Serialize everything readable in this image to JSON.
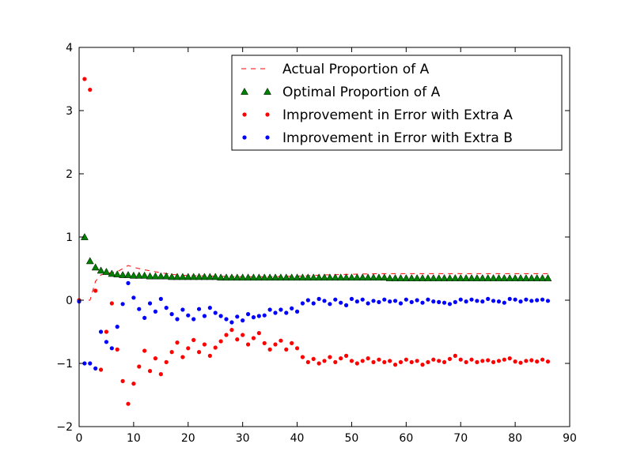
{
  "chart_data": {
    "type": "scatter",
    "title": "",
    "xlabel": "",
    "ylabel": "",
    "xlim": [
      0,
      90
    ],
    "ylim": [
      -2,
      4
    ],
    "xticks": [
      0,
      10,
      20,
      30,
      40,
      50,
      60,
      70,
      80,
      90
    ],
    "yticks": [
      -2,
      -1,
      0,
      1,
      2,
      3,
      4
    ],
    "grid": false,
    "legend_position": "top-right",
    "series": [
      {
        "name": "Actual Proportion of A",
        "style": "dashed-line",
        "color": "#ff0000",
        "x": [
          0,
          1,
          2,
          3,
          4,
          5,
          6,
          7,
          8,
          9,
          10,
          12,
          14,
          16,
          18,
          20,
          25,
          30,
          35,
          40,
          45,
          50,
          55,
          60,
          65,
          70,
          75,
          80,
          86
        ],
        "y": [
          0,
          0,
          0,
          0.3,
          0.4,
          0.42,
          0.44,
          0.45,
          0.5,
          0.55,
          0.52,
          0.48,
          0.45,
          0.42,
          0.4,
          0.39,
          0.38,
          0.37,
          0.37,
          0.38,
          0.4,
          0.41,
          0.42,
          0.42,
          0.42,
          0.42,
          0.42,
          0.42,
          0.42
        ]
      },
      {
        "name": "Optimal Proportion of A",
        "style": "triangle",
        "color": "#008000",
        "x": [
          1,
          2,
          3,
          4,
          5,
          6,
          7,
          8,
          9,
          10,
          11,
          12,
          13,
          14,
          15,
          16,
          17,
          18,
          19,
          20,
          21,
          22,
          23,
          24,
          25,
          26,
          27,
          28,
          29,
          30,
          31,
          32,
          33,
          34,
          35,
          36,
          37,
          38,
          39,
          40,
          41,
          42,
          43,
          44,
          45,
          46,
          47,
          48,
          49,
          50,
          51,
          52,
          53,
          54,
          55,
          56,
          57,
          58,
          59,
          60,
          61,
          62,
          63,
          64,
          65,
          66,
          67,
          68,
          69,
          70,
          71,
          72,
          73,
          74,
          75,
          76,
          77,
          78,
          79,
          80,
          81,
          82,
          83,
          84,
          85,
          86
        ],
        "y": [
          1.0,
          0.62,
          0.52,
          0.47,
          0.45,
          0.42,
          0.41,
          0.4,
          0.4,
          0.39,
          0.39,
          0.39,
          0.38,
          0.38,
          0.38,
          0.38,
          0.37,
          0.37,
          0.37,
          0.37,
          0.37,
          0.37,
          0.37,
          0.37,
          0.37,
          0.36,
          0.36,
          0.36,
          0.36,
          0.36,
          0.36,
          0.36,
          0.36,
          0.36,
          0.36,
          0.36,
          0.36,
          0.36,
          0.36,
          0.36,
          0.36,
          0.36,
          0.36,
          0.36,
          0.36,
          0.36,
          0.36,
          0.36,
          0.36,
          0.36,
          0.36,
          0.36,
          0.36,
          0.36,
          0.36,
          0.36,
          0.35,
          0.35,
          0.35,
          0.35,
          0.35,
          0.35,
          0.35,
          0.35,
          0.35,
          0.35,
          0.35,
          0.35,
          0.35,
          0.35,
          0.35,
          0.35,
          0.35,
          0.35,
          0.35,
          0.35,
          0.35,
          0.35,
          0.35,
          0.35,
          0.35,
          0.35,
          0.35,
          0.35,
          0.35,
          0.35
        ]
      },
      {
        "name": "Improvement in Error with Extra A",
        "style": "dot",
        "color": "#ff0000",
        "x": [
          0,
          1,
          2,
          3,
          4,
          5,
          6,
          7,
          8,
          9,
          10,
          11,
          12,
          13,
          14,
          15,
          16,
          17,
          18,
          19,
          20,
          21,
          22,
          23,
          24,
          25,
          26,
          27,
          28,
          29,
          30,
          31,
          32,
          33,
          34,
          35,
          36,
          37,
          38,
          39,
          40,
          41,
          42,
          43,
          44,
          45,
          46,
          47,
          48,
          49,
          50,
          51,
          52,
          53,
          54,
          55,
          56,
          57,
          58,
          59,
          60,
          61,
          62,
          63,
          64,
          65,
          66,
          67,
          68,
          69,
          70,
          71,
          72,
          73,
          74,
          75,
          76,
          77,
          78,
          79,
          80,
          81,
          82,
          83,
          84,
          85,
          86
        ],
        "y": [
          0,
          3.5,
          3.33,
          0.15,
          -1.1,
          -0.5,
          -0.05,
          -0.78,
          -1.28,
          -1.64,
          -1.32,
          -1.05,
          -0.8,
          -1.12,
          -0.92,
          -1.17,
          -0.98,
          -0.82,
          -0.67,
          -0.9,
          -0.76,
          -0.63,
          -0.82,
          -0.7,
          -0.88,
          -0.75,
          -0.65,
          -0.55,
          -0.47,
          -0.62,
          -0.55,
          -0.7,
          -0.6,
          -0.52,
          -0.68,
          -0.78,
          -0.7,
          -0.64,
          -0.78,
          -0.68,
          -0.76,
          -0.9,
          -0.98,
          -0.93,
          -1.0,
          -0.96,
          -0.9,
          -0.98,
          -0.92,
          -0.88,
          -0.96,
          -1.0,
          -0.96,
          -0.92,
          -0.98,
          -0.94,
          -0.98,
          -0.96,
          -1.02,
          -0.98,
          -0.94,
          -0.98,
          -0.96,
          -1.02,
          -0.98,
          -0.94,
          -0.96,
          -0.98,
          -0.93,
          -0.88,
          -0.94,
          -0.98,
          -0.94,
          -0.98,
          -0.96,
          -0.95,
          -0.98,
          -0.96,
          -0.94,
          -0.92,
          -0.97,
          -0.99,
          -0.96,
          -0.95,
          -0.97,
          -0.94,
          -0.97
        ]
      },
      {
        "name": "Improvement in Error with Extra B",
        "style": "dot",
        "color": "#0000ff",
        "x": [
          0,
          1,
          2,
          3,
          4,
          5,
          6,
          7,
          8,
          9,
          10,
          11,
          12,
          13,
          14,
          15,
          16,
          17,
          18,
          19,
          20,
          21,
          22,
          23,
          24,
          25,
          26,
          27,
          28,
          29,
          30,
          31,
          32,
          33,
          34,
          35,
          36,
          37,
          38,
          39,
          40,
          41,
          42,
          43,
          44,
          45,
          46,
          47,
          48,
          49,
          50,
          51,
          52,
          53,
          54,
          55,
          56,
          57,
          58,
          59,
          60,
          61,
          62,
          63,
          64,
          65,
          66,
          67,
          68,
          69,
          70,
          71,
          72,
          73,
          74,
          75,
          76,
          77,
          78,
          79,
          80,
          81,
          82,
          83,
          84,
          85,
          86
        ],
        "y": [
          -0.02,
          -1.0,
          -1.0,
          -1.08,
          -0.5,
          -0.66,
          -0.76,
          -0.42,
          -0.06,
          0.27,
          0.04,
          -0.14,
          -0.28,
          -0.05,
          -0.18,
          0.02,
          -0.12,
          -0.22,
          -0.3,
          -0.15,
          -0.24,
          -0.3,
          -0.14,
          -0.25,
          -0.12,
          -0.2,
          -0.25,
          -0.3,
          -0.35,
          -0.26,
          -0.32,
          -0.22,
          -0.27,
          -0.25,
          -0.24,
          -0.15,
          -0.2,
          -0.15,
          -0.2,
          -0.13,
          -0.18,
          -0.05,
          0.0,
          -0.05,
          0.02,
          -0.01,
          -0.06,
          0.01,
          -0.04,
          -0.08,
          0.02,
          -0.02,
          0.01,
          -0.05,
          -0.01,
          -0.03,
          0.01,
          -0.02,
          -0.01,
          -0.05,
          0.01,
          -0.03,
          0.0,
          -0.04,
          0.01,
          -0.02,
          -0.03,
          -0.04,
          -0.06,
          -0.03,
          0.01,
          -0.02,
          0.01,
          -0.01,
          -0.02,
          0.02,
          -0.01,
          -0.02,
          -0.04,
          0.02,
          0.01,
          -0.02,
          0.01,
          -0.01,
          0.0,
          0.01,
          -0.01
        ]
      }
    ]
  }
}
